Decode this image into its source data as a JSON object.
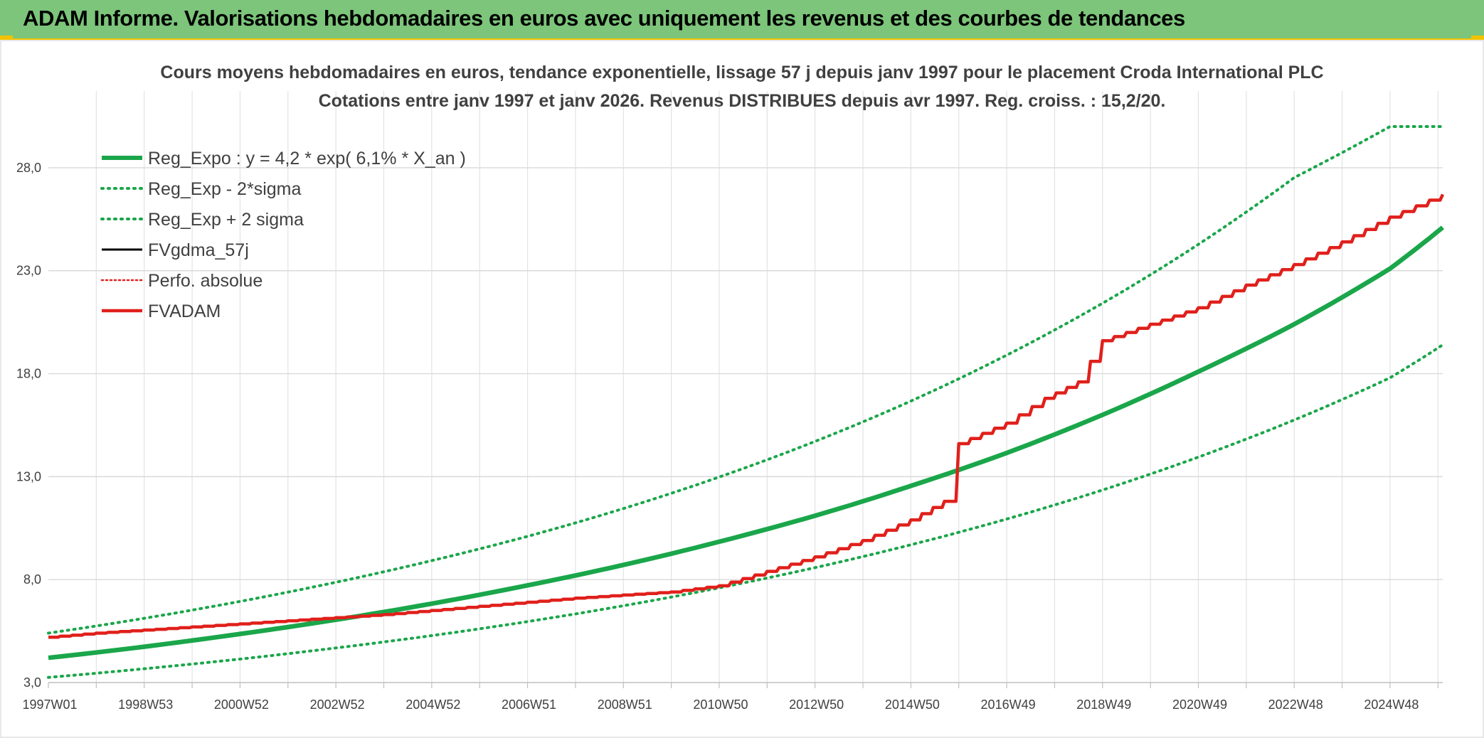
{
  "banner": {
    "title": "ADAM Informe. Valorisations hebdomadaires en euros avec uniquement les revenus et des courbes de tendances",
    "color": "#7cc57a",
    "accent": "#f2c200"
  },
  "chart_data": {
    "type": "line",
    "title": "Cours moyens hebdomadaires en euros, tendance exponentielle, lissage 57 j depuis janv 1997 pour le placement Croda International PLC",
    "subtitle": "Cotations entre janv 1997 et janv 2026. Revenus DISTRIBUES depuis avr 1997. Reg. croiss. : 15,2/20.",
    "xlabel": "",
    "ylabel": "",
    "x_range": [
      1997.0,
      2026.1
    ],
    "ylim": [
      3.0,
      30.0
    ],
    "y_ticks": [
      3.0,
      8.0,
      13.0,
      18.0,
      23.0,
      28.0
    ],
    "y_tick_labels": [
      "3,0",
      "8,0",
      "13,0",
      "18,0",
      "23,0",
      "28,0"
    ],
    "x_ticks": [
      1997.0,
      1999.0,
      2001.0,
      2003.0,
      2005.0,
      2007.0,
      2009.0,
      2011.0,
      2013.0,
      2015.0,
      2017.0,
      2019.0,
      2021.0,
      2023.0,
      2025.0
    ],
    "x_tick_labels": [
      "1997W01",
      "1998W53",
      "2000W52",
      "2002W52",
      "2004W52",
      "2006W51",
      "2008W51",
      "2010W50",
      "2012W50",
      "2014W50",
      "2016W49",
      "2018W49",
      "2020W49",
      "2022W48",
      "2024W48"
    ],
    "grid": true,
    "legend_position": "top-left",
    "series": [
      {
        "name": "Reg_Expo : y = 4,2 * exp( 6,1% *  X_an )",
        "color": "#1aa64a",
        "style": "solid",
        "x": [
          1997.0,
          1999.0,
          2001.0,
          2003.0,
          2005.0,
          2007.0,
          2009.0,
          2011.0,
          2013.0,
          2015.0,
          2017.0,
          2019.0,
          2021.0,
          2023.0,
          2025.0,
          2026.1
        ],
        "values": [
          4.2,
          4.74,
          5.36,
          6.05,
          6.83,
          7.72,
          8.71,
          9.84,
          11.1,
          12.55,
          14.15,
          16.0,
          18.1,
          20.4,
          23.1,
          25.1
        ]
      },
      {
        "name": "Reg_Exp - 2*sigma",
        "color": "#1aa64a",
        "style": "dotted",
        "x": [
          1997.0,
          1999.0,
          2001.0,
          2003.0,
          2005.0,
          2007.0,
          2009.0,
          2011.0,
          2013.0,
          2015.0,
          2017.0,
          2019.0,
          2021.0,
          2023.0,
          2025.0,
          2026.1
        ],
        "values": [
          3.25,
          3.67,
          4.14,
          4.68,
          5.28,
          5.96,
          6.73,
          7.6,
          8.58,
          9.69,
          10.94,
          12.35,
          13.95,
          15.75,
          17.8,
          19.4
        ]
      },
      {
        "name": "Reg_Exp + 2 sigma",
        "color": "#1aa64a",
        "style": "dotted",
        "x": [
          1997.0,
          1999.0,
          2001.0,
          2003.0,
          2005.0,
          2007.0,
          2009.0,
          2011.0,
          2013.0,
          2015.0,
          2017.0,
          2019.0,
          2021.0,
          2023.0,
          2025.0,
          2026.1
        ],
        "values": [
          5.4,
          6.12,
          6.94,
          7.87,
          8.92,
          10.1,
          11.45,
          12.98,
          14.71,
          16.67,
          18.9,
          21.42,
          24.28,
          27.52,
          30.0,
          30.0
        ]
      },
      {
        "name": "FVgdma_57j",
        "color": "#000000",
        "style": "solid",
        "x": [
          1997.0,
          1998.0,
          2000.0,
          2002.0,
          2004.0,
          2006.0,
          2008.0,
          2010.0,
          2011.0,
          2012.0,
          2013.0,
          2014.0,
          2015.0,
          2015.7,
          2016.0,
          2017.0,
          2017.8,
          2018.5,
          2019.0,
          2020.0,
          2021.0,
          2022.0,
          2023.0,
          2024.0,
          2025.0,
          2026.1
        ],
        "values": [
          5.2,
          5.4,
          5.7,
          6.0,
          6.3,
          6.7,
          7.1,
          7.4,
          7.7,
          8.4,
          9.1,
          9.9,
          10.9,
          11.8,
          14.6,
          15.6,
          16.8,
          17.6,
          19.6,
          20.4,
          21.2,
          22.3,
          23.3,
          24.4,
          25.6,
          26.7
        ]
      },
      {
        "name": "Perfo. absolue",
        "color": "#e0201b",
        "style": "dotted",
        "x": [],
        "values": []
      },
      {
        "name": "FVADAM",
        "color": "#e0201b",
        "style": "solid",
        "x": [
          1997.0,
          1998.0,
          2000.0,
          2002.0,
          2004.0,
          2006.0,
          2008.0,
          2010.0,
          2011.0,
          2012.0,
          2013.0,
          2014.0,
          2015.0,
          2015.7,
          2016.0,
          2017.0,
          2017.8,
          2018.5,
          2019.0,
          2020.0,
          2021.0,
          2022.0,
          2023.0,
          2024.0,
          2025.0,
          2026.1
        ],
        "values": [
          5.2,
          5.4,
          5.7,
          6.0,
          6.3,
          6.7,
          7.1,
          7.4,
          7.7,
          8.4,
          9.1,
          9.9,
          10.9,
          11.8,
          14.6,
          15.6,
          16.8,
          17.6,
          19.6,
          20.4,
          21.2,
          22.3,
          23.3,
          24.4,
          25.6,
          26.7
        ]
      }
    ]
  }
}
